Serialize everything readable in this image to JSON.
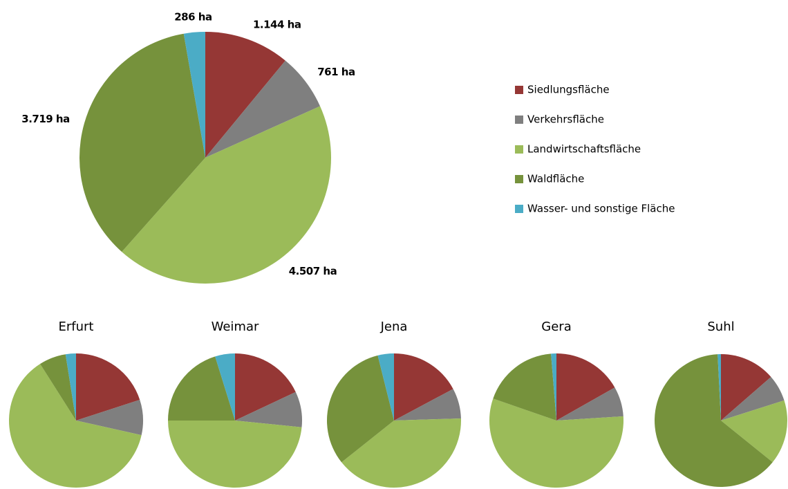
{
  "chart_data": [
    {
      "type": "pie",
      "categories": [
        "Siedlungsfläche",
        "Verkehrsfläche",
        "Landwirtschaftsfläche",
        "Waldfläche",
        "Wasser- und sonstige Fläche"
      ],
      "values": [
        1144,
        761,
        4507,
        3719,
        286
      ],
      "value_labels": [
        "1.144 ha",
        "761 ha",
        "4.507 ha",
        "3.719 ha",
        "286 ha"
      ],
      "colors": [
        "#953735",
        "#7f7f7f",
        "#9bbb59",
        "#76923c",
        "#4bacc6"
      ],
      "legend": "right"
    },
    {
      "type": "pie",
      "title": "Erfurt",
      "values": [
        20,
        8.5,
        62.5,
        6.5,
        2.5
      ],
      "colors": [
        "#953735",
        "#7f7f7f",
        "#9bbb59",
        "#76923c",
        "#4bacc6"
      ]
    },
    {
      "type": "pie",
      "title": "Weimar",
      "values": [
        18,
        8.6,
        48.4,
        20.2,
        4.8
      ],
      "colors": [
        "#953735",
        "#7f7f7f",
        "#9bbb59",
        "#76923c",
        "#4bacc6"
      ]
    },
    {
      "type": "pie",
      "title": "Jena",
      "values": [
        17.2,
        7.3,
        39.8,
        31.8,
        3.9
      ],
      "colors": [
        "#953735",
        "#7f7f7f",
        "#9bbb59",
        "#76923c",
        "#4bacc6"
      ]
    },
    {
      "type": "pie",
      "title": "Gera",
      "values": [
        16.8,
        7.2,
        56.3,
        18.4,
        1.3
      ],
      "colors": [
        "#953735",
        "#7f7f7f",
        "#9bbb59",
        "#76923c",
        "#4bacc6"
      ]
    },
    {
      "type": "pie",
      "title": "Suhl",
      "values": [
        13.6,
        6.5,
        15.7,
        63.4,
        0.8
      ],
      "colors": [
        "#953735",
        "#7f7f7f",
        "#9bbb59",
        "#76923c",
        "#4bacc6"
      ]
    }
  ]
}
